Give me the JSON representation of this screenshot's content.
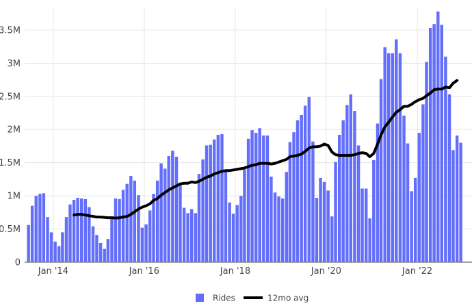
{
  "chart_data": {
    "type": "bar",
    "title": "",
    "xlabel": "",
    "ylabel": "",
    "x_start": "2013-06",
    "x_range": [
      "2013-05-16",
      "2023-03-16"
    ],
    "xticks": [
      {
        "date": "2014-01-01",
        "label": "Jan '14"
      },
      {
        "date": "2016-01-01",
        "label": "Jan '16"
      },
      {
        "date": "2018-01-01",
        "label": "Jan '18"
      },
      {
        "date": "2020-01-01",
        "label": "Jan '20"
      },
      {
        "date": "2022-01-01",
        "label": "Jan '22"
      }
    ],
    "ylim": [
      0,
      3850000
    ],
    "yticks": [
      {
        "value": 0,
        "label": "0"
      },
      {
        "value": 500000,
        "label": "0.5M"
      },
      {
        "value": 1000000,
        "label": "1M"
      },
      {
        "value": 1500000,
        "label": "1.5M"
      },
      {
        "value": 2000000,
        "label": "2M"
      },
      {
        "value": 2500000,
        "label": "2.5M"
      },
      {
        "value": 3000000,
        "label": "3M"
      },
      {
        "value": 3500000,
        "label": "3.5M"
      }
    ],
    "grid": true,
    "legend_position": "bottom-center",
    "series": [
      {
        "name": "Rides",
        "type": "bar",
        "color": "#636efa",
        "values": [
          560000,
          850000,
          1000000,
          1030000,
          1040000,
          680000,
          450000,
          310000,
          240000,
          450000,
          680000,
          870000,
          940000,
          970000,
          960000,
          950000,
          830000,
          540000,
          410000,
          290000,
          200000,
          350000,
          690000,
          960000,
          950000,
          1090000,
          1180000,
          1300000,
          1230000,
          1010000,
          520000,
          570000,
          780000,
          1030000,
          1230000,
          1490000,
          1410000,
          1600000,
          1680000,
          1590000,
          1170000,
          820000,
          740000,
          800000,
          740000,
          1330000,
          1550000,
          1760000,
          1770000,
          1850000,
          1920000,
          1930000,
          1380000,
          900000,
          730000,
          860000,
          1000000,
          1400000,
          1860000,
          1990000,
          1950000,
          2020000,
          1910000,
          1910000,
          1290000,
          1050000,
          990000,
          960000,
          1360000,
          1810000,
          1960000,
          2140000,
          2220000,
          2360000,
          2490000,
          1820000,
          970000,
          1270000,
          1210000,
          1080000,
          690000,
          1510000,
          1920000,
          2140000,
          2370000,
          2530000,
          2280000,
          1760000,
          1110000,
          1110000,
          660000,
          1540000,
          2090000,
          2760000,
          3240000,
          3150000,
          3150000,
          3360000,
          3150000,
          2210000,
          1790000,
          1070000,
          1270000,
          1950000,
          2380000,
          3020000,
          3530000,
          3590000,
          3780000,
          3580000,
          3100000,
          2530000,
          1690000,
          1910000,
          1800000
        ]
      },
      {
        "name": "12mo avg",
        "type": "line",
        "color": "#000000",
        "values": [
          null,
          null,
          null,
          null,
          null,
          null,
          null,
          null,
          null,
          null,
          null,
          null,
          710000,
          720000,
          720000,
          710000,
          700000,
          690000,
          680000,
          680000,
          675000,
          670000,
          670000,
          665000,
          670000,
          680000,
          690000,
          720000,
          760000,
          800000,
          830000,
          850000,
          880000,
          930000,
          960000,
          1010000,
          1050000,
          1090000,
          1120000,
          1150000,
          1180000,
          1190000,
          1190000,
          1210000,
          1200000,
          1220000,
          1250000,
          1280000,
          1300000,
          1330000,
          1350000,
          1370000,
          1380000,
          1380000,
          1390000,
          1400000,
          1410000,
          1420000,
          1440000,
          1460000,
          1470000,
          1490000,
          1490000,
          1490000,
          1480000,
          1490000,
          1510000,
          1530000,
          1550000,
          1590000,
          1600000,
          1610000,
          1630000,
          1670000,
          1720000,
          1740000,
          1740000,
          1750000,
          1780000,
          1760000,
          1660000,
          1620000,
          1610000,
          1610000,
          1610000,
          1610000,
          1620000,
          1640000,
          1650000,
          1640000,
          1590000,
          1640000,
          1780000,
          1920000,
          2040000,
          2110000,
          2190000,
          2260000,
          2300000,
          2350000,
          2350000,
          2380000,
          2420000,
          2450000,
          2470000,
          2510000,
          2550000,
          2600000,
          2610000,
          2610000,
          2640000,
          2630000,
          2700000,
          2740000
        ]
      }
    ]
  }
}
